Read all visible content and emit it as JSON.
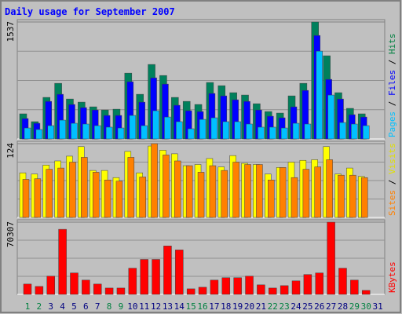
{
  "chart_data": {
    "type": "bar",
    "title": "Daily usage for September 2007",
    "categories": [
      "1",
      "2",
      "3",
      "4",
      "5",
      "6",
      "7",
      "8",
      "9",
      "10",
      "11",
      "12",
      "13",
      "14",
      "15",
      "16",
      "17",
      "18",
      "19",
      "20",
      "21",
      "22",
      "23",
      "24",
      "25",
      "26",
      "27",
      "28",
      "29",
      "30",
      "31"
    ],
    "category_colors": [
      "#008040",
      "#008040",
      "#000080",
      "#000080",
      "#000080",
      "#000080",
      "#000080",
      "#008040",
      "#008040",
      "#000080",
      "#000080",
      "#000080",
      "#000080",
      "#000080",
      "#008040",
      "#008040",
      "#000080",
      "#000080",
      "#000080",
      "#000080",
      "#000080",
      "#008040",
      "#008040",
      "#000080",
      "#000080",
      "#000080",
      "#000080",
      "#000080",
      "#008040",
      "#008040",
      "#000080"
    ],
    "legend_separator": " / ",
    "panels": [
      {
        "ylim": [
          0,
          1537
        ],
        "yticks": [
          1537
        ],
        "grid": true,
        "series": [
          {
            "name": "Hits",
            "color": "#00805c",
            "label_color": "#008040",
            "values": [
              330,
              227,
              546,
              731,
              525,
              484,
              422,
              381,
              391,
              865,
              587,
              979,
              834,
              546,
              494,
              453,
              742,
              700,
              608,
              577,
              463,
              360,
              340,
              566,
              731,
              1537,
              1093,
              608,
              402,
              330,
              null
            ]
          },
          {
            "name": "Files",
            "color": "#0000ff",
            "label_color": "#0000ff",
            "values": [
              268,
              206,
              494,
              587,
              453,
              412,
              381,
              309,
              309,
              752,
              484,
              803,
              721,
              443,
              371,
              360,
              598,
              566,
              515,
              494,
              381,
              299,
              278,
              422,
              638,
              1360,
              783,
              525,
              319,
              288,
              null
            ]
          },
          {
            "name": "Pages",
            "color": "#00c0ff",
            "label_color": "#00c0ff",
            "values": [
              144,
              124,
              175,
              247,
              206,
              196,
              175,
              155,
              144,
              309,
              175,
              371,
              288,
              227,
              134,
              257,
              278,
              227,
              227,
              196,
              155,
              155,
              144,
              206,
              196,
              1154,
              577,
              216,
              196,
              175,
              null
            ]
          }
        ]
      },
      {
        "ylim": [
          0,
          124
        ],
        "yticks": [
          124
        ],
        "grid": true,
        "series": [
          {
            "name": "Visits",
            "color": "#ffff00",
            "label_color": "#e0e000",
            "values": [
              75,
              73,
              88,
              95,
              103,
              119,
              79,
              79,
              67,
              111,
              75,
              120,
              113,
              107,
              87,
              89,
              99,
              85,
              104,
              91,
              89,
              73,
              84,
              93,
              96,
              97,
              119,
              73,
              83,
              69,
              null
            ]
          },
          {
            "name": "Sites",
            "color": "#ff8000",
            "label_color": "#ff8000",
            "values": [
              64,
              65,
              81,
              83,
              93,
              101,
              76,
              63,
              61,
              101,
              68,
              124,
              105,
              95,
              87,
              76,
              87,
              79,
              93,
              89,
              89,
              63,
              84,
              67,
              81,
              85,
              97,
              71,
              71,
              67,
              null
            ]
          }
        ]
      },
      {
        "ylim": [
          0,
          70307
        ],
        "yticks": [
          70307
        ],
        "grid": true,
        "series": [
          {
            "name": "KBytes",
            "color": "#ff0000",
            "label_color": "#ff0000",
            "values": [
              10050,
              7730,
              17780,
              63350,
              20870,
              13910,
              10050,
              6180,
              6180,
              25510,
              34010,
              34010,
              47150,
              43280,
              5410,
              6960,
              13910,
              16230,
              16230,
              17780,
              9280,
              6180,
              8500,
              13140,
              19330,
              20870,
              70307,
              25510,
              13910,
              3870,
              null
            ]
          }
        ]
      }
    ]
  }
}
